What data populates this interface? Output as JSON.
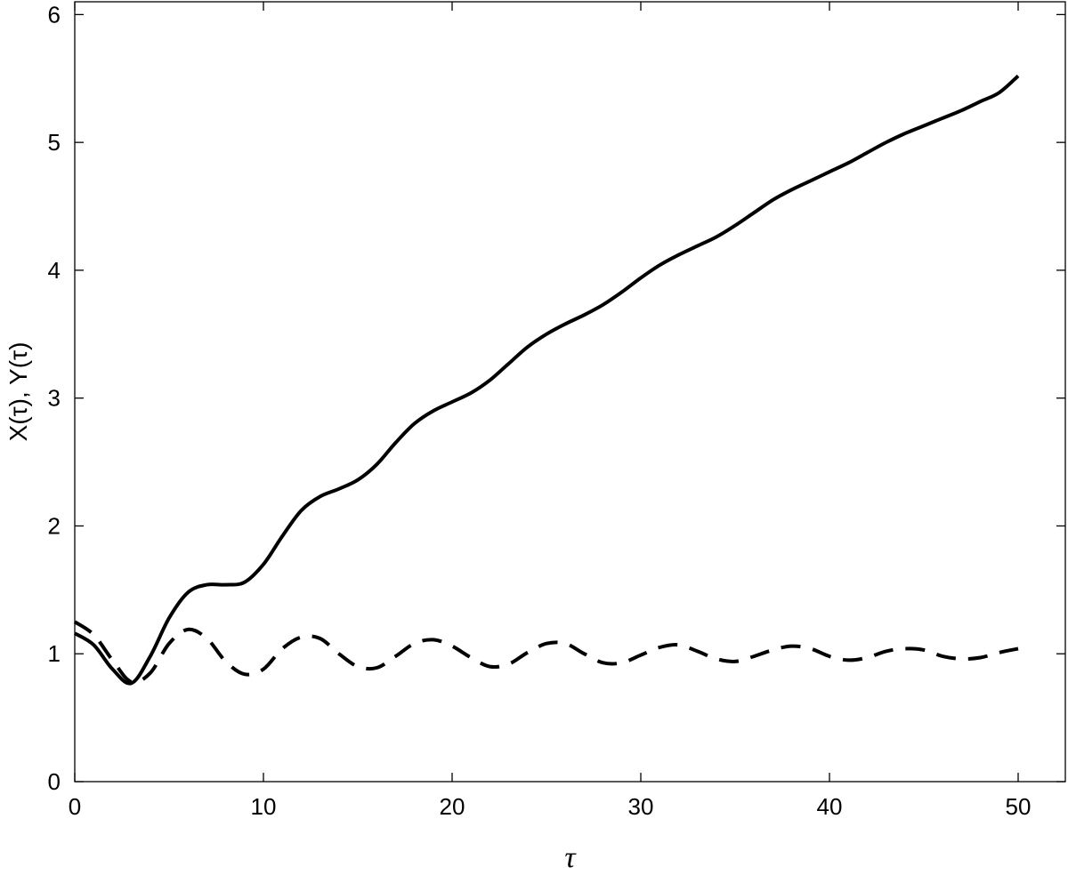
{
  "chart_data": {
    "type": "line",
    "xlabel": "τ",
    "ylabel": "X(τ), Y(τ)",
    "xlim": [
      0,
      52.5
    ],
    "ylim": [
      0,
      6.1
    ],
    "xticks": [
      0,
      10,
      20,
      30,
      40,
      50
    ],
    "yticks": [
      0,
      1,
      2,
      3,
      4,
      5,
      6
    ],
    "grid": false,
    "legend": "none",
    "series": [
      {
        "style": "solid",
        "color": "#000000",
        "x": [
          0,
          1,
          2,
          3,
          4,
          5,
          6,
          7,
          8,
          9,
          10,
          11,
          12,
          13,
          14,
          15,
          16,
          17,
          18,
          19,
          20,
          21,
          22,
          23,
          24,
          25,
          26,
          27,
          28,
          29,
          30,
          31,
          32,
          33,
          34,
          35,
          36,
          37,
          38,
          39,
          40,
          41,
          42,
          43,
          44,
          45,
          46,
          47,
          48,
          49,
          50
        ],
        "y": [
          1.16,
          1.07,
          0.88,
          0.77,
          0.98,
          1.28,
          1.48,
          1.54,
          1.54,
          1.56,
          1.7,
          1.92,
          2.12,
          2.23,
          2.29,
          2.36,
          2.48,
          2.65,
          2.8,
          2.9,
          2.97,
          3.04,
          3.14,
          3.27,
          3.4,
          3.5,
          3.58,
          3.65,
          3.73,
          3.83,
          3.94,
          4.04,
          4.12,
          4.19,
          4.26,
          4.35,
          4.45,
          4.55,
          4.63,
          4.7,
          4.77,
          4.84,
          4.92,
          5.0,
          5.07,
          5.13,
          5.19,
          5.25,
          5.32,
          5.39,
          5.52
        ]
      },
      {
        "style": "dashed",
        "color": "#000000",
        "x": [
          0,
          1,
          2,
          3,
          4,
          5,
          6,
          7,
          8,
          9,
          10,
          11,
          12,
          13,
          14,
          15,
          16,
          17,
          18,
          19,
          20,
          21,
          22,
          23,
          24,
          25,
          26,
          27,
          28,
          29,
          30,
          31,
          32,
          33,
          34,
          35,
          36,
          37,
          38,
          39,
          40,
          41,
          42,
          43,
          44,
          45,
          46,
          47,
          48,
          49,
          50
        ],
        "y": [
          1.25,
          1.15,
          0.95,
          0.78,
          0.85,
          1.08,
          1.19,
          1.12,
          0.94,
          0.84,
          0.88,
          1.04,
          1.13,
          1.12,
          1.0,
          0.9,
          0.89,
          0.98,
          1.08,
          1.11,
          1.06,
          0.97,
          0.9,
          0.92,
          1.01,
          1.08,
          1.08,
          1.0,
          0.93,
          0.93,
          0.99,
          1.05,
          1.07,
          1.02,
          0.96,
          0.94,
          0.98,
          1.03,
          1.06,
          1.04,
          0.98,
          0.95,
          0.97,
          1.02,
          1.04,
          1.03,
          0.98,
          0.96,
          0.97,
          1.01,
          1.04
        ]
      }
    ]
  }
}
